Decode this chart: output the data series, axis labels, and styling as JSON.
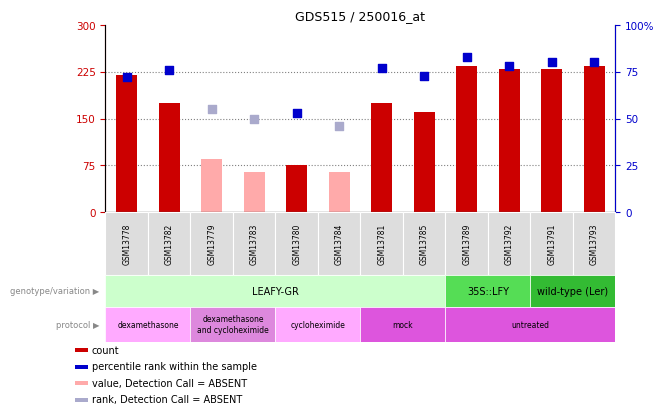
{
  "title": "GDS515 / 250016_at",
  "samples": [
    "GSM13778",
    "GSM13782",
    "GSM13779",
    "GSM13783",
    "GSM13780",
    "GSM13784",
    "GSM13781",
    "GSM13785",
    "GSM13789",
    "GSM13792",
    "GSM13791",
    "GSM13793"
  ],
  "count_values": [
    220,
    175,
    null,
    null,
    75,
    null,
    175,
    160,
    235,
    230,
    230,
    235
  ],
  "count_absent": [
    null,
    null,
    85,
    65,
    null,
    65,
    null,
    null,
    null,
    null,
    null,
    null
  ],
  "rank_values": [
    72,
    76,
    null,
    null,
    53,
    null,
    77,
    73,
    83,
    78,
    80,
    80
  ],
  "rank_absent": [
    null,
    null,
    55,
    50,
    null,
    46,
    null,
    null,
    null,
    null,
    null,
    null
  ],
  "ylim_left": [
    0,
    300
  ],
  "ylim_right": [
    0,
    100
  ],
  "yticks_left": [
    0,
    75,
    150,
    225,
    300
  ],
  "yticks_right": [
    0,
    25,
    50,
    75,
    100
  ],
  "bar_color_present": "#cc0000",
  "bar_color_absent": "#ffaaaa",
  "dot_color_present": "#0000cc",
  "dot_color_absent": "#aaaacc",
  "dot_size": 40,
  "genotype_groups": [
    {
      "label": "LEAFY-GR",
      "start": 0,
      "end": 8,
      "color": "#ccffcc"
    },
    {
      "label": "35S::LFY",
      "start": 8,
      "end": 10,
      "color": "#55dd55"
    },
    {
      "label": "wild-type (Ler)",
      "start": 10,
      "end": 12,
      "color": "#33bb33"
    }
  ],
  "protocol_groups": [
    {
      "label": "dexamethasone",
      "start": 0,
      "end": 2,
      "color": "#ffaaff"
    },
    {
      "label": "dexamethasone\nand cycloheximide",
      "start": 2,
      "end": 4,
      "color": "#dd88dd"
    },
    {
      "label": "cycloheximide",
      "start": 4,
      "end": 6,
      "color": "#ffaaff"
    },
    {
      "label": "mock",
      "start": 6,
      "end": 8,
      "color": "#dd55dd"
    },
    {
      "label": "untreated",
      "start": 8,
      "end": 12,
      "color": "#dd55dd"
    }
  ],
  "hline_values": [
    75,
    150,
    225
  ],
  "bar_width": 0.5,
  "left_label_color": "#cc0000",
  "right_label_color": "#0000cc",
  "tick_fontsize": 7.5,
  "sample_box_color": "#dddddd",
  "left_panel_label_color": "#888888"
}
